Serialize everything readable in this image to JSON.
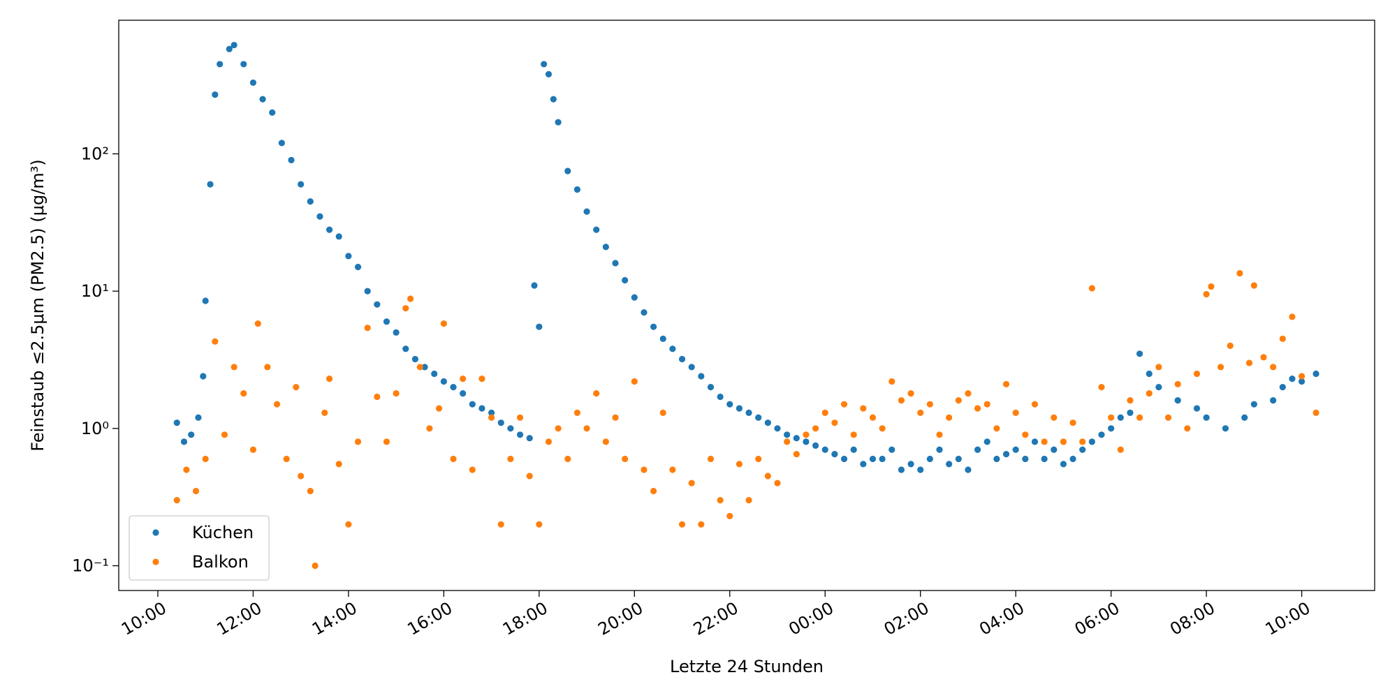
{
  "chart_data": {
    "type": "scatter",
    "x_label": "Letzte 24 Stunden",
    "y_label": "Feinstaub ≤2.5μm (PM2.5) (μg/m³)",
    "log_y": true,
    "legend": "lower left",
    "xlim": [
      9.18,
      35.53
    ],
    "ylim": [
      0.066,
      940
    ],
    "xticks": [
      {
        "value": 10,
        "label": "10:00"
      },
      {
        "value": 12,
        "label": "12:00"
      },
      {
        "value": 14,
        "label": "14:00"
      },
      {
        "value": 16,
        "label": "16:00"
      },
      {
        "value": 18,
        "label": "18:00"
      },
      {
        "value": 20,
        "label": "20:00"
      },
      {
        "value": 22,
        "label": "22:00"
      },
      {
        "value": 24,
        "label": "00:00"
      },
      {
        "value": 26,
        "label": "02:00"
      },
      {
        "value": 28,
        "label": "04:00"
      },
      {
        "value": 30,
        "label": "06:00"
      },
      {
        "value": 32,
        "label": "08:00"
      },
      {
        "value": 34,
        "label": "10:00"
      }
    ],
    "yticks": [
      {
        "value": 0.1,
        "label": "10⁻¹"
      },
      {
        "value": 1,
        "label": "10⁰"
      },
      {
        "value": 10,
        "label": "10¹"
      },
      {
        "value": 100,
        "label": "10²"
      }
    ],
    "series": [
      {
        "name": "Küchen",
        "color": "#1f77b4",
        "x": [
          10.4,
          10.55,
          10.7,
          10.85,
          10.95,
          11.0,
          11.1,
          11.2,
          11.3,
          11.5,
          11.6,
          11.8,
          12.0,
          12.2,
          12.4,
          12.6,
          12.8,
          13.0,
          13.2,
          13.4,
          13.6,
          13.8,
          14.0,
          14.2,
          14.4,
          14.6,
          14.8,
          15.0,
          15.2,
          15.4,
          15.6,
          15.8,
          16.0,
          16.2,
          16.4,
          16.6,
          16.8,
          17.0,
          17.2,
          17.4,
          17.6,
          17.8,
          17.9,
          18.0,
          18.1,
          18.2,
          18.3,
          18.4,
          18.6,
          18.8,
          19.0,
          19.2,
          19.4,
          19.6,
          19.8,
          20.0,
          20.2,
          20.4,
          20.6,
          20.8,
          21.0,
          21.2,
          21.4,
          21.6,
          21.8,
          22.0,
          22.2,
          22.4,
          22.6,
          22.8,
          23.0,
          23.2,
          23.4,
          23.6,
          23.8,
          24.0,
          24.2,
          24.4,
          24.6,
          24.8,
          25.0,
          25.2,
          25.4,
          25.6,
          25.8,
          26.0,
          26.2,
          26.4,
          26.6,
          26.8,
          27.0,
          27.2,
          27.4,
          27.6,
          27.8,
          28.0,
          28.2,
          28.4,
          28.6,
          28.8,
          29.0,
          29.2,
          29.4,
          29.6,
          29.8,
          30.0,
          30.2,
          30.4,
          30.6,
          30.8,
          31.0,
          31.4,
          31.8,
          32.0,
          32.4,
          32.8,
          33.0,
          33.4,
          33.6,
          33.8,
          34.0,
          34.3
        ],
        "values": [
          1.1,
          0.8,
          0.9,
          1.2,
          2.4,
          8.5,
          60,
          270,
          450,
          580,
          620,
          450,
          330,
          250,
          200,
          120,
          90,
          60,
          45,
          35,
          28,
          25,
          18,
          15,
          10,
          8,
          6,
          5,
          3.8,
          3.2,
          2.8,
          2.5,
          2.2,
          2.0,
          1.8,
          1.5,
          1.4,
          1.3,
          1.1,
          1.0,
          0.9,
          0.85,
          11,
          5.5,
          450,
          380,
          250,
          170,
          75,
          55,
          38,
          28,
          21,
          16,
          12,
          9,
          7,
          5.5,
          4.5,
          3.8,
          3.2,
          2.8,
          2.4,
          2.0,
          1.7,
          1.5,
          1.4,
          1.3,
          1.2,
          1.1,
          1.0,
          0.9,
          0.85,
          0.8,
          0.75,
          0.7,
          0.65,
          0.6,
          0.7,
          0.55,
          0.6,
          0.6,
          0.7,
          0.5,
          0.55,
          0.5,
          0.6,
          0.7,
          0.55,
          0.6,
          0.5,
          0.7,
          0.8,
          0.6,
          0.65,
          0.7,
          0.6,
          0.8,
          0.6,
          0.7,
          0.55,
          0.6,
          0.7,
          0.8,
          0.9,
          1.0,
          1.2,
          1.3,
          3.5,
          2.5,
          2.0,
          1.6,
          1.4,
          1.2,
          1.0,
          1.2,
          1.5,
          1.6,
          2.0,
          2.3,
          2.2,
          2.5
        ]
      },
      {
        "name": "Balkon",
        "color": "#ff7f0e",
        "x": [
          10.4,
          10.6,
          10.8,
          11.0,
          11.2,
          11.4,
          11.6,
          11.8,
          12.0,
          12.1,
          12.3,
          12.5,
          12.7,
          12.9,
          13.0,
          13.2,
          13.3,
          13.5,
          13.6,
          13.8,
          14.0,
          14.2,
          14.4,
          14.6,
          14.8,
          15.0,
          15.2,
          15.3,
          15.5,
          15.7,
          15.9,
          16.0,
          16.2,
          16.4,
          16.6,
          16.8,
          17.0,
          17.2,
          17.4,
          17.6,
          17.8,
          18.0,
          18.2,
          18.4,
          18.6,
          18.8,
          19.0,
          19.2,
          19.4,
          19.6,
          19.8,
          20.0,
          20.2,
          20.4,
          20.6,
          20.8,
          21.0,
          21.2,
          21.4,
          21.6,
          21.8,
          22.0,
          22.2,
          22.4,
          22.6,
          22.8,
          23.0,
          23.2,
          23.4,
          23.6,
          23.8,
          24.0,
          24.2,
          24.4,
          24.6,
          24.8,
          25.0,
          25.2,
          25.4,
          25.6,
          25.8,
          26.0,
          26.2,
          26.4,
          26.6,
          26.8,
          27.0,
          27.2,
          27.4,
          27.6,
          27.8,
          28.0,
          28.2,
          28.4,
          28.6,
          28.8,
          29.0,
          29.2,
          29.4,
          29.6,
          29.8,
          30.0,
          30.2,
          30.4,
          30.6,
          30.8,
          31.0,
          31.2,
          31.4,
          31.6,
          31.8,
          32.0,
          32.1,
          32.3,
          32.5,
          32.7,
          32.9,
          33.0,
          33.2,
          33.4,
          33.6,
          33.8,
          34.0,
          34.3
        ],
        "values": [
          0.3,
          0.5,
          0.35,
          0.6,
          4.3,
          0.9,
          2.8,
          1.8,
          0.7,
          5.8,
          2.8,
          1.5,
          0.6,
          2.0,
          0.45,
          0.35,
          0.1,
          1.3,
          2.3,
          0.55,
          0.2,
          0.8,
          5.4,
          1.7,
          0.8,
          1.8,
          7.5,
          8.8,
          2.8,
          1.0,
          1.4,
          5.8,
          0.6,
          2.3,
          0.5,
          2.3,
          1.2,
          0.2,
          0.6,
          1.2,
          0.45,
          0.2,
          0.8,
          1.0,
          0.6,
          1.3,
          1.0,
          1.8,
          0.8,
          1.2,
          0.6,
          2.2,
          0.5,
          0.35,
          1.3,
          0.5,
          0.2,
          0.4,
          0.2,
          0.6,
          0.3,
          0.23,
          0.55,
          0.3,
          0.6,
          0.45,
          0.4,
          0.8,
          0.65,
          0.9,
          1.0,
          1.3,
          1.1,
          1.5,
          0.9,
          1.4,
          1.2,
          1.0,
          2.2,
          1.6,
          1.8,
          1.3,
          1.5,
          0.9,
          1.2,
          1.6,
          1.8,
          1.4,
          1.5,
          1.0,
          2.1,
          1.3,
          0.9,
          1.5,
          0.8,
          1.2,
          0.8,
          1.1,
          0.8,
          10.5,
          2.0,
          1.2,
          0.7,
          1.6,
          1.2,
          1.8,
          2.8,
          1.2,
          2.1,
          1.0,
          2.5,
          9.5,
          10.8,
          2.8,
          4.0,
          13.5,
          3.0,
          11.0,
          3.3,
          2.8,
          4.5,
          6.5,
          2.4,
          1.3
        ]
      }
    ]
  }
}
